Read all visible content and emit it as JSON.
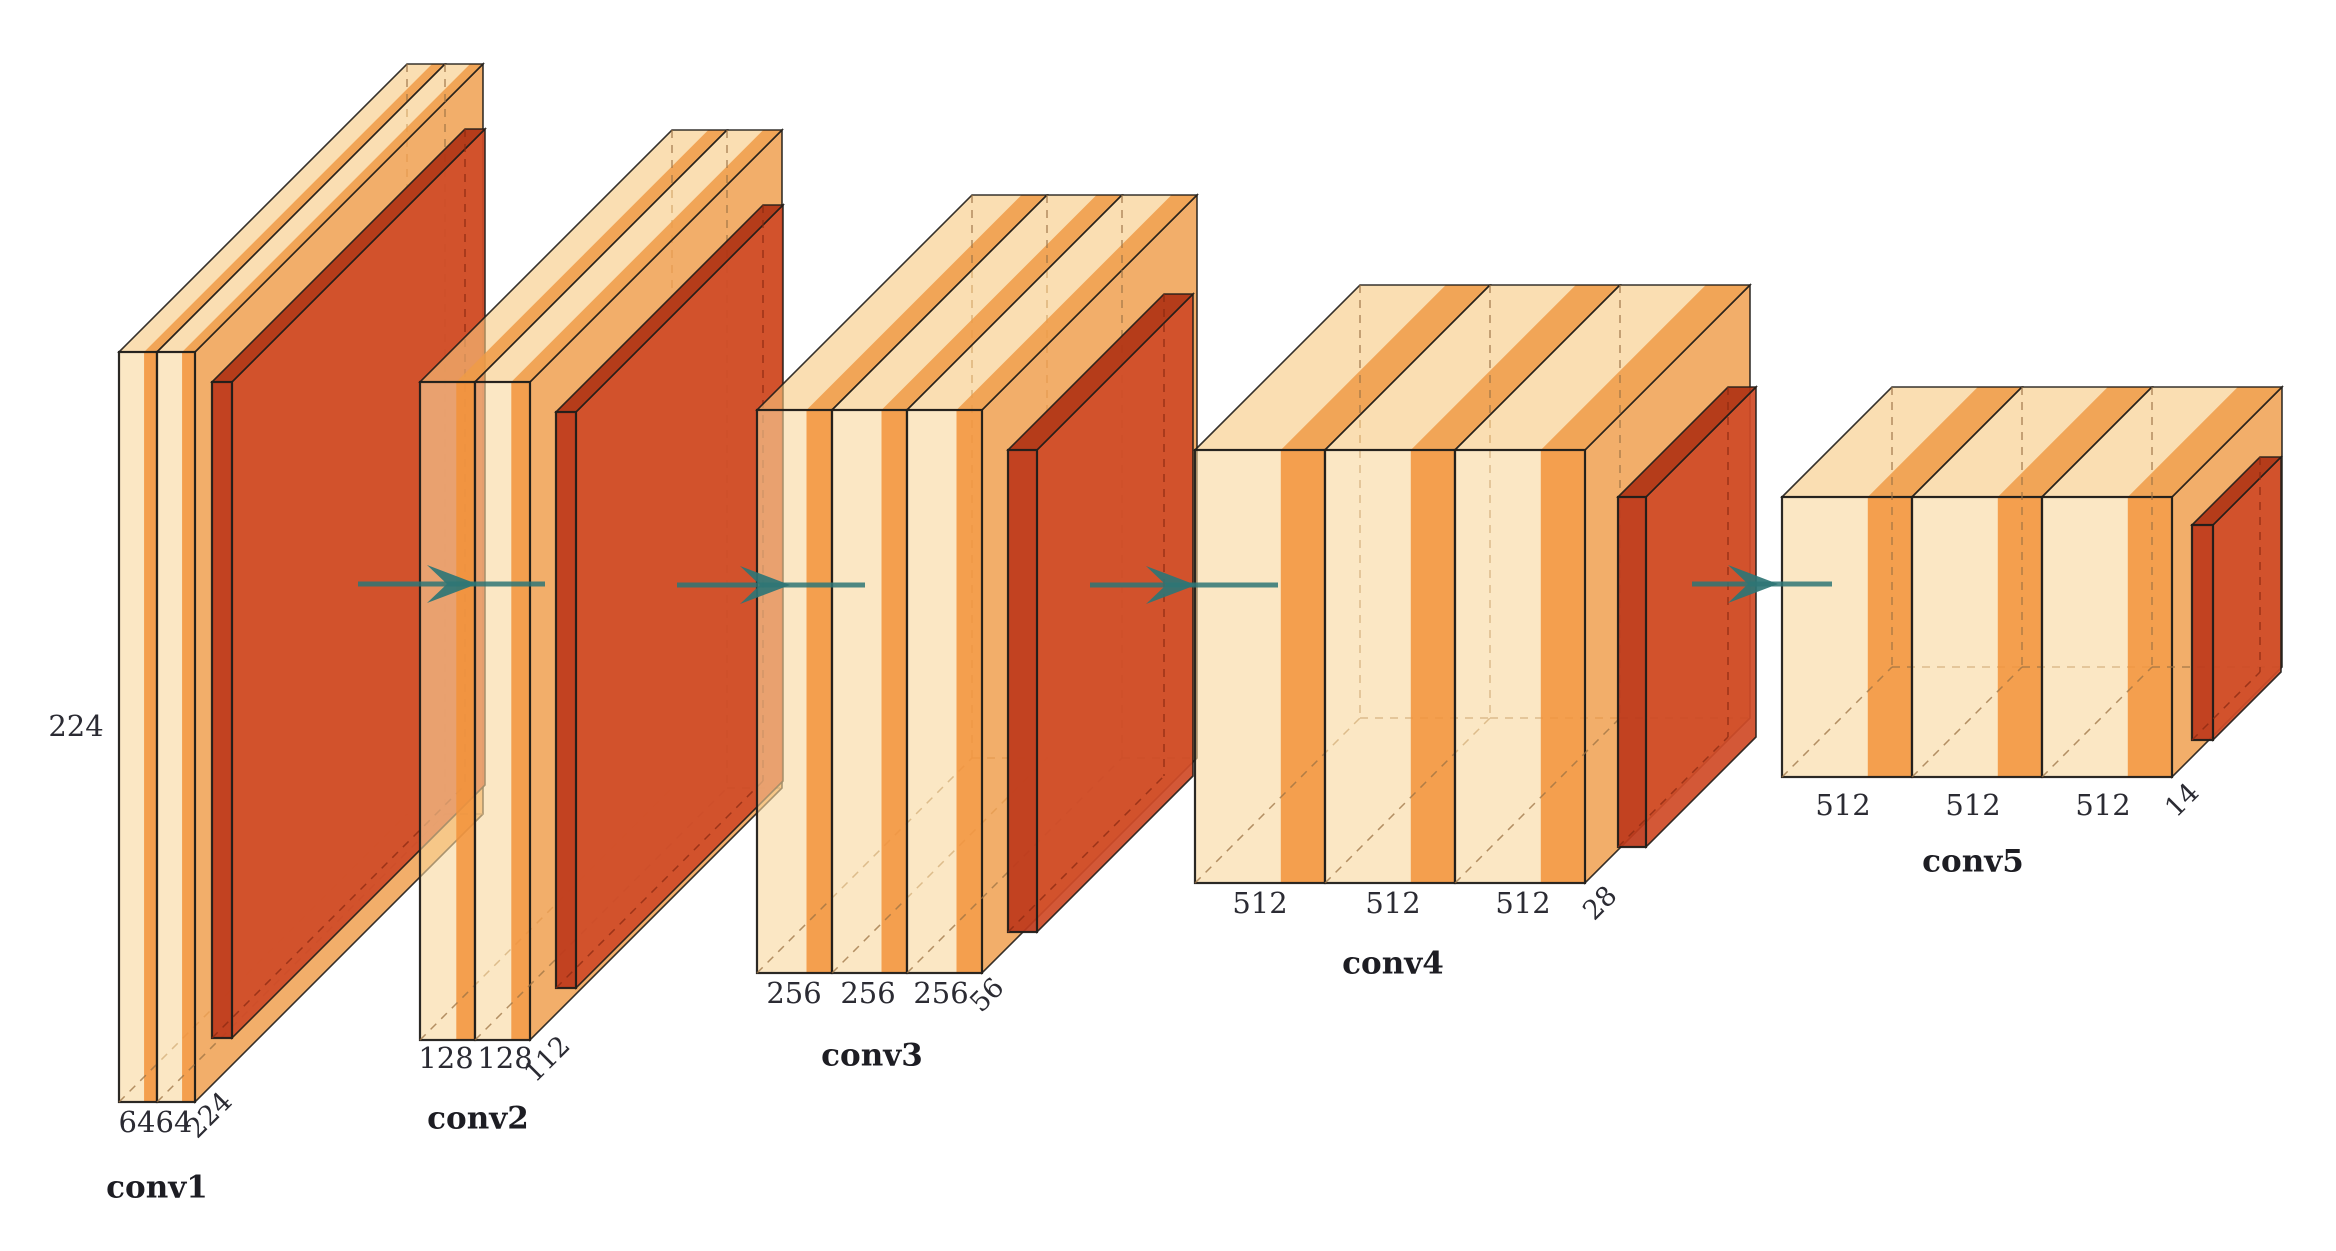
{
  "diagram": {
    "kind": "convnet-architecture",
    "description": "VGG-style convolutional network with five conv blocks and pooling layers",
    "height_label": "224",
    "blocks": [
      {
        "name": "conv1",
        "channel_labels": [
          "64",
          "64"
        ],
        "depth_label": "224",
        "num_conv_layers": 2,
        "has_pool": true
      },
      {
        "name": "conv2",
        "channel_labels": [
          "128",
          "128"
        ],
        "depth_label": "112",
        "num_conv_layers": 2,
        "has_pool": true
      },
      {
        "name": "conv3",
        "channel_labels": [
          "256",
          "256",
          "256"
        ],
        "depth_label": "56",
        "num_conv_layers": 3,
        "has_pool": true
      },
      {
        "name": "conv4",
        "channel_labels": [
          "512",
          "512",
          "512"
        ],
        "depth_label": "28",
        "num_conv_layers": 3,
        "has_pool": true
      },
      {
        "name": "conv5",
        "channel_labels": [
          "512",
          "512",
          "512"
        ],
        "depth_label": "14",
        "num_conv_layers": 3,
        "has_pool": true
      }
    ],
    "colors": {
      "background": "#ffffff",
      "slab_front": "#F9D79C",
      "slab_front_band": "#F2923A",
      "slab_top": "#F7C87F",
      "slab_top_band": "#EF9B47",
      "slab_side": "#F0A050",
      "pool_front": "#BE3A1C",
      "pool_side": "#D04B28",
      "pool_top": "#B03414",
      "outline": "#201d1a",
      "hidden_edge": "#9b7243",
      "hidden_edge_red": "#8a2a12",
      "arrow": "#2e7575",
      "number_label": "#2b2b33",
      "name_label": "#1d1d23"
    }
  }
}
